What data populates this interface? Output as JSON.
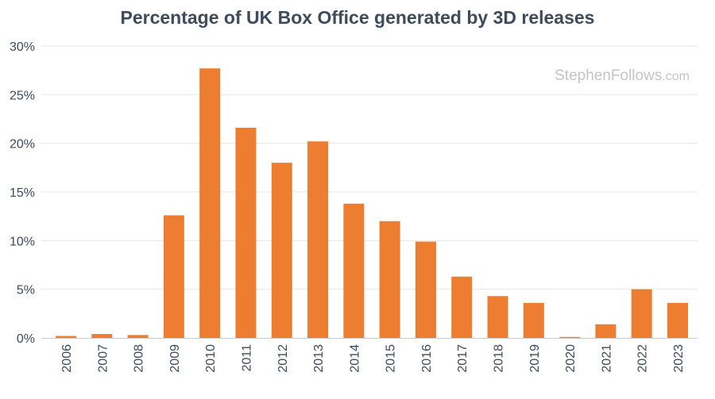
{
  "chart_data": {
    "type": "bar",
    "title": "Percentage of UK Box Office generated by 3D releases",
    "xlabel": "",
    "ylabel": "",
    "ylim": [
      0,
      30
    ],
    "yticks": [
      0,
      5,
      10,
      15,
      20,
      25,
      30
    ],
    "ytick_labels": [
      "0%",
      "5%",
      "10%",
      "15%",
      "20%",
      "25%",
      "30%"
    ],
    "categories": [
      "2006",
      "2007",
      "2008",
      "2009",
      "2010",
      "2011",
      "2012",
      "2013",
      "2014",
      "2015",
      "2016",
      "2017",
      "2018",
      "2019",
      "2020",
      "2021",
      "2022",
      "2023"
    ],
    "values": [
      0.2,
      0.4,
      0.3,
      12.6,
      27.7,
      21.6,
      18.0,
      20.2,
      13.8,
      12.0,
      9.9,
      6.3,
      4.3,
      3.6,
      0.1,
      1.4,
      5.0,
      3.6
    ],
    "bar_color": "#ed7d31",
    "grid": true,
    "watermark": {
      "main": "StephenFollows",
      "suffix": ".com"
    }
  }
}
